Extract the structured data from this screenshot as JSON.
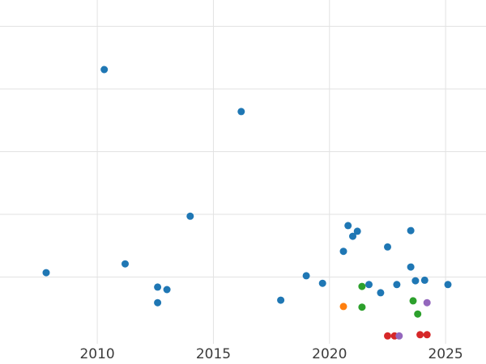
{
  "chart_data": {
    "type": "scatter",
    "title": "",
    "xlabel": "",
    "ylabel": "",
    "x_ticks": [
      "2010",
      "2015",
      "2020",
      "2025"
    ],
    "x_tick_values": [
      2010,
      2015,
      2020,
      2025
    ],
    "y_ticks_visible": false,
    "y_gridline_values": [
      1,
      2,
      3,
      4,
      5
    ],
    "xlim": [
      2005.81,
      2026.74
    ],
    "ylim": [
      -0.065,
      5.42
    ],
    "grid": true,
    "legend": false,
    "style": {
      "background": "#ffffff",
      "grid_color": "#e2e2e2",
      "tick_label_color": "#3b3b3b"
    },
    "series": [
      {
        "name": "blue",
        "color": "#1f77b4",
        "points": [
          [
            2007.8,
            1.07
          ],
          [
            2010.3,
            4.31
          ],
          [
            2011.2,
            1.21
          ],
          [
            2012.6,
            0.84
          ],
          [
            2012.6,
            0.59
          ],
          [
            2013.0,
            0.8
          ],
          [
            2014.0,
            1.97
          ],
          [
            2016.2,
            3.64
          ],
          [
            2017.9,
            0.63
          ],
          [
            2019.0,
            1.02
          ],
          [
            2019.7,
            0.9
          ],
          [
            2020.6,
            1.41
          ],
          [
            2020.8,
            1.82
          ],
          [
            2021.0,
            1.65
          ],
          [
            2021.2,
            1.73
          ],
          [
            2021.7,
            0.88
          ],
          [
            2022.2,
            0.75
          ],
          [
            2022.5,
            1.48
          ],
          [
            2022.9,
            0.88
          ],
          [
            2023.5,
            1.74
          ],
          [
            2023.5,
            1.16
          ],
          [
            2023.7,
            0.94
          ],
          [
            2024.1,
            0.95
          ],
          [
            2025.1,
            0.88
          ]
        ]
      },
      {
        "name": "orange",
        "color": "#ff7f0e",
        "points": [
          [
            2020.6,
            0.53
          ]
        ]
      },
      {
        "name": "green",
        "color": "#2ca02c",
        "points": [
          [
            2021.4,
            0.85
          ],
          [
            2021.4,
            0.52
          ],
          [
            2023.6,
            0.62
          ],
          [
            2023.8,
            0.41
          ]
        ]
      },
      {
        "name": "red",
        "color": "#d62728",
        "points": [
          [
            2022.5,
            0.06
          ],
          [
            2022.8,
            0.06
          ],
          [
            2023.9,
            0.08
          ],
          [
            2024.2,
            0.08
          ]
        ]
      },
      {
        "name": "purple",
        "color": "#9467bd",
        "points": [
          [
            2023.0,
            0.06
          ],
          [
            2024.2,
            0.59
          ]
        ]
      }
    ]
  }
}
